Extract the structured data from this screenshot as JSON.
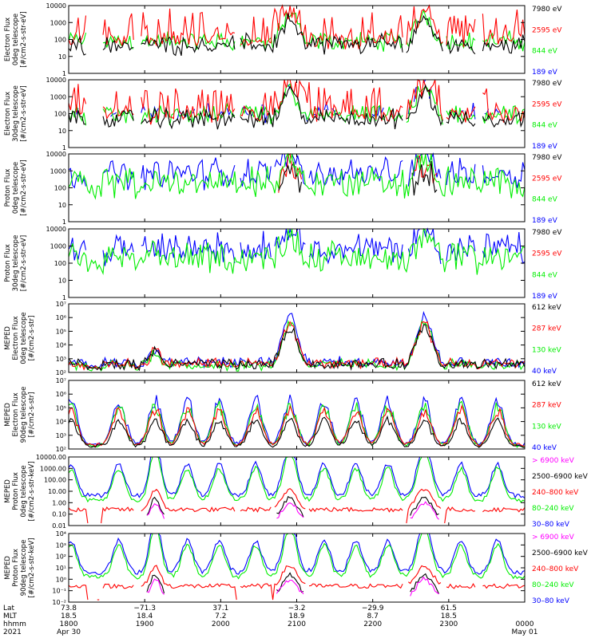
{
  "colors": {
    "black": "#000000",
    "red": "#ff0000",
    "green": "#00ee00",
    "blue": "#0000ff",
    "magenta": "#ff00ff"
  },
  "x_axis": {
    "row_labels": [
      "Lat",
      "MLT",
      "hhmm",
      "2021"
    ],
    "ticks": [
      {
        "lat": "73.8",
        "mlt": "18.5",
        "hhmm": "1800",
        "date": "Apr 30"
      },
      {
        "lat": "−71.3",
        "mlt": "18.4",
        "hhmm": "1900",
        "date": ""
      },
      {
        "lat": "37.1",
        "mlt": "7.2",
        "hhmm": "2000",
        "date": ""
      },
      {
        "lat": "−3.2",
        "mlt": "18.9",
        "hhmm": "2100",
        "date": ""
      },
      {
        "lat": "−29.9",
        "mlt": "8.7",
        "hhmm": "2200",
        "date": ""
      },
      {
        "lat": "61.5",
        "mlt": "18.5",
        "hhmm": "2300",
        "date": ""
      },
      {
        "lat": "",
        "mlt": "",
        "hhmm": "0000",
        "date": "May 01"
      }
    ]
  },
  "chart_data": [
    {
      "type": "line",
      "ylabel": [
        "Electron Flux",
        "0deg telescope",
        "[#/cm2-s-str-eV]"
      ],
      "yticks": [
        "1",
        "10",
        "100",
        "1000",
        "10000"
      ],
      "ylog": [
        0,
        4
      ],
      "legend": [
        {
          "name": "7980 eV",
          "color": "black"
        },
        {
          "name": "2595 eV",
          "color": "red"
        },
        {
          "name": "844 eV",
          "color": "green"
        },
        {
          "name": "189 eV",
          "color": "blue"
        }
      ],
      "style": "e",
      "draw": [
        "green",
        "red",
        "black"
      ]
    },
    {
      "type": "line",
      "ylabel": [
        "Electron Flux",
        "30deg telescope",
        "[#/cm2-s-str-eV]"
      ],
      "yticks": [
        "1",
        "10",
        "100",
        "1000",
        "10000"
      ],
      "ylog": [
        0,
        4
      ],
      "legend": [
        {
          "name": "7980 eV",
          "color": "black"
        },
        {
          "name": "2595 eV",
          "color": "red"
        },
        {
          "name": "844 eV",
          "color": "green"
        },
        {
          "name": "189 eV",
          "color": "blue"
        }
      ],
      "style": "e",
      "draw": [
        "blue",
        "green",
        "red",
        "black"
      ]
    },
    {
      "type": "line",
      "ylabel": [
        "Proton Flux",
        "0deg telescope",
        "[#/cm2-s-str-eV]"
      ],
      "yticks": [
        "1",
        "10",
        "100",
        "1000",
        "10000"
      ],
      "ylog": [
        0,
        4
      ],
      "legend": [
        {
          "name": "7980 eV",
          "color": "black"
        },
        {
          "name": "2595 eV",
          "color": "red"
        },
        {
          "name": "844 eV",
          "color": "green"
        },
        {
          "name": "189 eV",
          "color": "blue"
        }
      ],
      "style": "p",
      "draw": [
        "blue",
        "red",
        "black",
        "green"
      ]
    },
    {
      "type": "line",
      "ylabel": [
        "Proton Flux",
        "30deg telescope",
        "[#/cm2-s-str-eV]"
      ],
      "yticks": [
        "1",
        "10",
        "100",
        "1000",
        "10000"
      ],
      "ylog": [
        0,
        4
      ],
      "legend": [
        {
          "name": "7980 eV",
          "color": "black"
        },
        {
          "name": "2595 eV",
          "color": "red"
        },
        {
          "name": "844 eV",
          "color": "green"
        },
        {
          "name": "189 eV",
          "color": "blue"
        }
      ],
      "style": "p",
      "draw": [
        "blue",
        "green"
      ]
    },
    {
      "type": "line",
      "ylabel": [
        "MEPED",
        "Electron Flux",
        "0deg telescope",
        "[#/cm2-s-str]"
      ],
      "yticks": [
        "10²",
        "10³",
        "10⁴",
        "10⁵",
        "10⁶",
        "10⁷"
      ],
      "ylog": [
        2,
        7
      ],
      "legend": [
        {
          "name": "612 keV",
          "color": "black"
        },
        {
          "name": "287 keV",
          "color": "red"
        },
        {
          "name": "130 keV",
          "color": "green"
        },
        {
          "name": "40 keV",
          "color": "blue"
        }
      ],
      "style": "m0",
      "draw": [
        "blue",
        "green",
        "red",
        "black"
      ]
    },
    {
      "type": "line",
      "ylabel": [
        "MEPED",
        "Electron Flux",
        "90deg telescope",
        "[#/cm2-s-str]"
      ],
      "yticks": [
        "10²",
        "10³",
        "10⁴",
        "10⁵",
        "10⁶",
        "10⁷"
      ],
      "ylog": [
        2,
        7
      ],
      "legend": [
        {
          "name": "612 keV",
          "color": "black"
        },
        {
          "name": "287 keV",
          "color": "red"
        },
        {
          "name": "130 keV",
          "color": "green"
        },
        {
          "name": "40 keV",
          "color": "blue"
        }
      ],
      "style": "m90",
      "draw": [
        "blue",
        "green",
        "red",
        "black"
      ]
    },
    {
      "type": "line",
      "ylabel": [
        "MEPED",
        "Proton Flux",
        "0deg telescope",
        "[#/cm2-s-str-keV]"
      ],
      "yticks": [
        "0.01",
        "0.10",
        "1.00",
        "10.00",
        "100.00",
        "1000.00",
        "10000.00"
      ],
      "ylog": [
        -2,
        4
      ],
      "legend": [
        {
          "name": "> 6900 keV",
          "color": "magenta"
        },
        {
          "name": "2500–6900 keV",
          "color": "black"
        },
        {
          "name": "240–800 keV",
          "color": "red"
        },
        {
          "name": "80–240 keV",
          "color": "green"
        },
        {
          "name": "30–80 keV",
          "color": "blue"
        }
      ],
      "style": "pp0",
      "draw": [
        "blue",
        "green",
        "red",
        "black",
        "magenta"
      ]
    },
    {
      "type": "line",
      "ylabel": [
        "MEPED",
        "Proton Flux",
        "90deg telescope",
        "[#/cm2-s-str-keV]"
      ],
      "yticks": [
        "10⁻²",
        "10⁻¹",
        "10⁰",
        "10¹",
        "10²",
        "10³",
        "10⁴"
      ],
      "ylog": [
        -2,
        4
      ],
      "legend": [
        {
          "name": "> 6900 keV",
          "color": "magenta"
        },
        {
          "name": "2500–6900 keV",
          "color": "black"
        },
        {
          "name": "240–800 keV",
          "color": "red"
        },
        {
          "name": "80–240 keV",
          "color": "green"
        },
        {
          "name": "30–80 keV",
          "color": "blue"
        }
      ],
      "style": "pp90",
      "draw": [
        "blue",
        "green",
        "red",
        "black",
        "magenta"
      ]
    }
  ]
}
